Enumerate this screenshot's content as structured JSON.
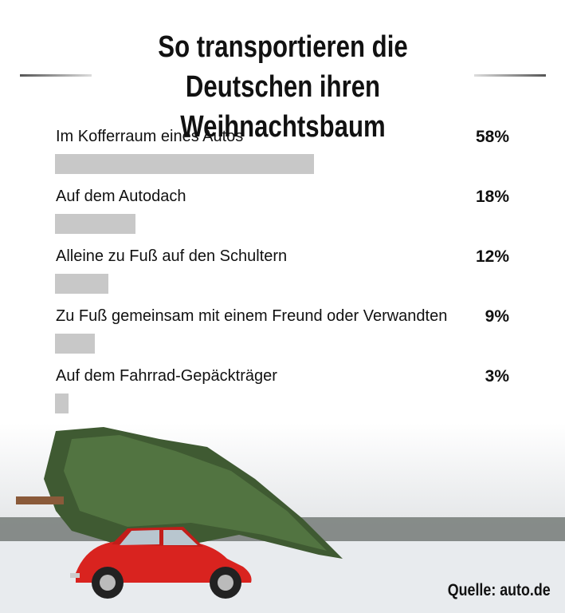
{
  "chart_data": {
    "type": "bar",
    "orientation": "horizontal",
    "title": "So transportieren die Deutschen ihren Weihnachtsbaum",
    "categories": [
      "Im Kofferraum eines Autos",
      "Auf dem Autodach",
      "Alleine zu Fuß auf den Schultern",
      "Zu Fuß gemeinsam mit einem Freund oder Verwandten",
      "Auf dem Fahrrad-Gepäckträger"
    ],
    "values": [
      58,
      18,
      12,
      9,
      3
    ],
    "value_labels": [
      "58%",
      "18%",
      "12%",
      "9%",
      "3%"
    ],
    "color": "#c8c8c8",
    "source": "Quelle: auto.de"
  }
}
